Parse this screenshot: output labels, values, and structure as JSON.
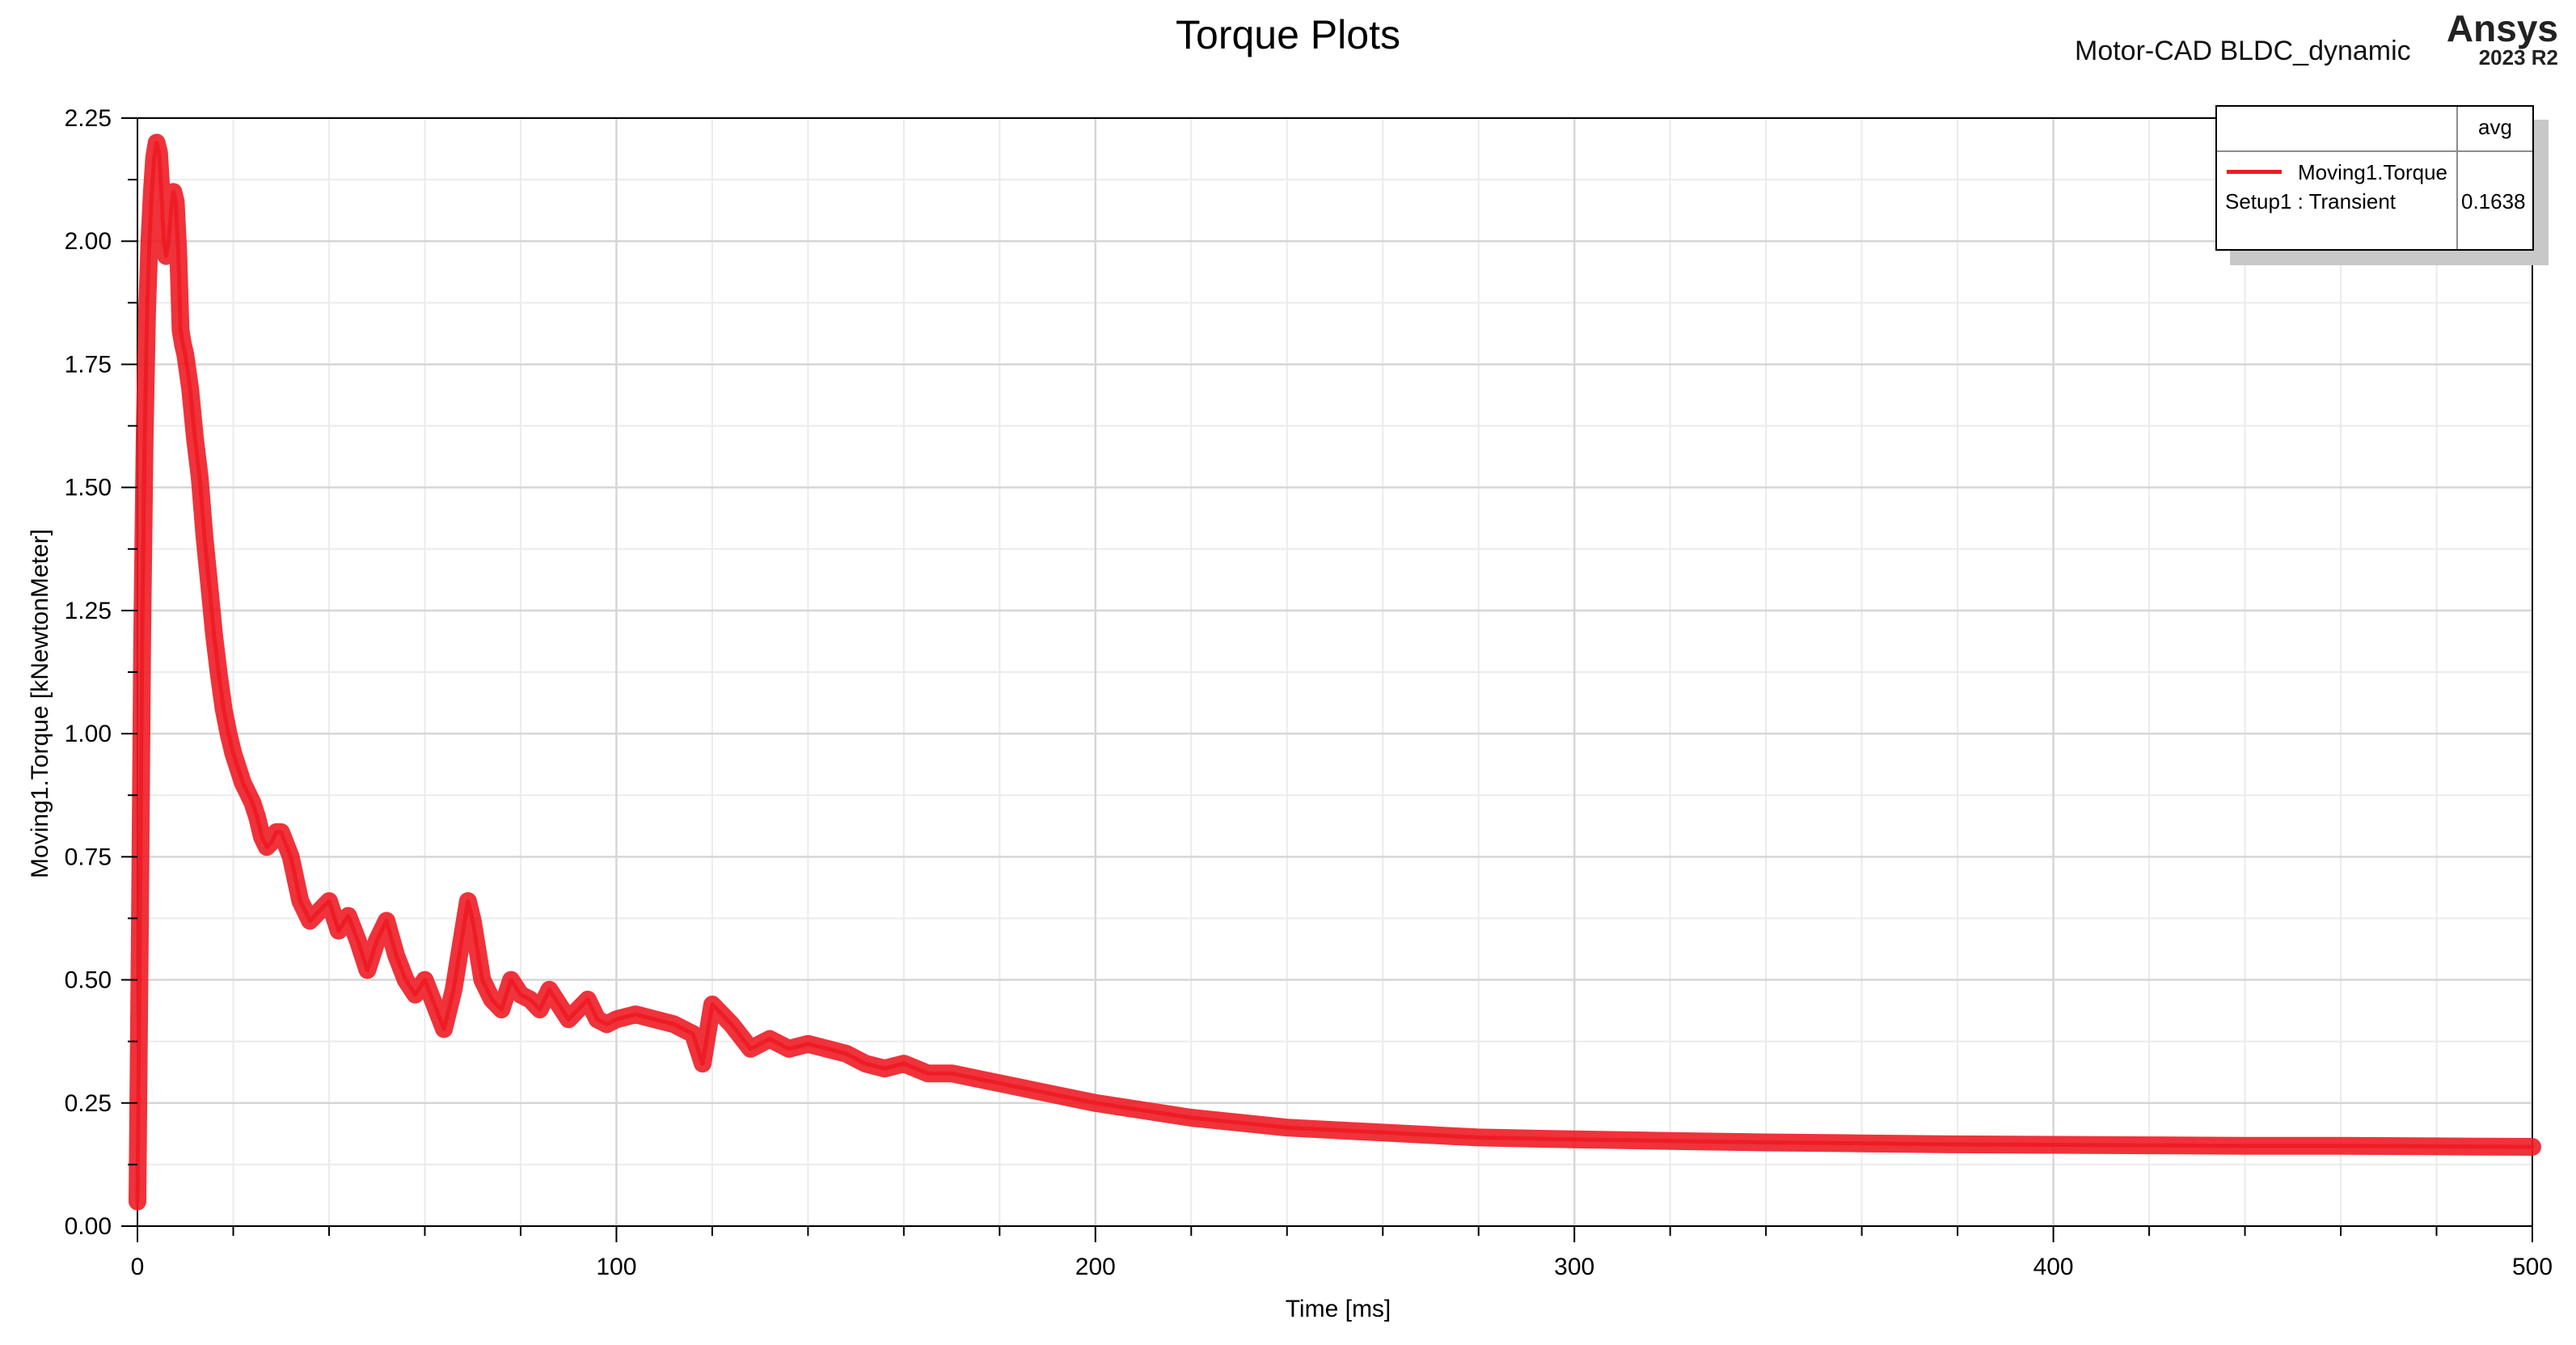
{
  "header": {
    "title": "Torque Plots",
    "subtitle": "Motor-CAD BLDC_dynamic",
    "brand": "Ansys",
    "version": "2023 R2"
  },
  "legend": {
    "column_header": "avg",
    "series_name": "Moving1.Torque",
    "setup_name": "Setup1 : Transient",
    "avg_value": "0.1638"
  },
  "colors": {
    "series": "#ee1c25",
    "grid": "#d6d6d6",
    "axis": "#000000"
  },
  "chart_data": {
    "type": "line",
    "title": "Torque Plots",
    "xlabel": "Time [ms]",
    "ylabel": "Moving1.Torque [kNewtonMeter]",
    "xlim": [
      0,
      500
    ],
    "ylim": [
      0,
      2.25
    ],
    "x_ticks": [
      0,
      100,
      200,
      300,
      400,
      500
    ],
    "x_tick_labels": [
      "0",
      "100",
      "200",
      "300",
      "400",
      "500"
    ],
    "y_ticks": [
      0,
      0.25,
      0.5,
      0.75,
      1.0,
      1.25,
      1.5,
      1.75,
      2.0,
      2.25
    ],
    "y_tick_labels": [
      "0.00",
      "0.25",
      "0.50",
      "0.75",
      "1.00",
      "1.25",
      "1.50",
      "1.75",
      "2.00",
      "2.25"
    ],
    "grid": true,
    "legend_position": "top-right",
    "series": [
      {
        "name": "Moving1.Torque",
        "setup": "Setup1 : Transient",
        "avg": 0.1638,
        "x": [
          0,
          0.5,
          1,
          1.5,
          2,
          2.5,
          3,
          3.5,
          4,
          4.5,
          5,
          5.5,
          6,
          6.5,
          7,
          7.5,
          8,
          8.5,
          9,
          9.5,
          10,
          11,
          12,
          13,
          14,
          15,
          16,
          17,
          18,
          19,
          20,
          21,
          22,
          23,
          24,
          25,
          26,
          27,
          28,
          29,
          30,
          32,
          34,
          36,
          38,
          40,
          42,
          44,
          46,
          48,
          50,
          52,
          54,
          56,
          58,
          60,
          62,
          64,
          66,
          68,
          69,
          70,
          72,
          74,
          76,
          78,
          80,
          82,
          84,
          86,
          88,
          90,
          92,
          94,
          96,
          98,
          100,
          104,
          108,
          112,
          116,
          118,
          120,
          124,
          128,
          132,
          136,
          140,
          144,
          148,
          152,
          156,
          160,
          165,
          170,
          175,
          180,
          190,
          200,
          210,
          220,
          230,
          240,
          250,
          260,
          270,
          280,
          290,
          300,
          320,
          340,
          360,
          380,
          400,
          420,
          440,
          460,
          480,
          500
        ],
        "y": [
          0.05,
          0.6,
          1.2,
          1.6,
          1.85,
          2.0,
          2.1,
          2.17,
          2.2,
          2.18,
          2.1,
          2.0,
          1.97,
          2.0,
          2.06,
          2.1,
          2.08,
          1.98,
          1.82,
          1.79,
          1.77,
          1.7,
          1.6,
          1.52,
          1.4,
          1.3,
          1.2,
          1.12,
          1.05,
          1.0,
          0.96,
          0.93,
          0.9,
          0.88,
          0.86,
          0.83,
          0.79,
          0.77,
          0.78,
          0.8,
          0.8,
          0.75,
          0.66,
          0.62,
          0.64,
          0.66,
          0.6,
          0.63,
          0.58,
          0.52,
          0.58,
          0.62,
          0.55,
          0.5,
          0.47,
          0.5,
          0.45,
          0.4,
          0.48,
          0.6,
          0.66,
          0.62,
          0.5,
          0.46,
          0.44,
          0.5,
          0.47,
          0.46,
          0.44,
          0.48,
          0.45,
          0.42,
          0.44,
          0.46,
          0.42,
          0.41,
          0.42,
          0.43,
          0.42,
          0.41,
          0.39,
          0.33,
          0.45,
          0.41,
          0.36,
          0.38,
          0.36,
          0.37,
          0.36,
          0.35,
          0.33,
          0.32,
          0.33,
          0.31,
          0.31,
          0.3,
          0.29,
          0.27,
          0.25,
          0.235,
          0.22,
          0.21,
          0.2,
          0.195,
          0.19,
          0.185,
          0.18,
          0.178,
          0.176,
          0.173,
          0.17,
          0.168,
          0.166,
          0.165,
          0.164,
          0.163,
          0.163,
          0.162,
          0.161
        ]
      }
    ]
  }
}
